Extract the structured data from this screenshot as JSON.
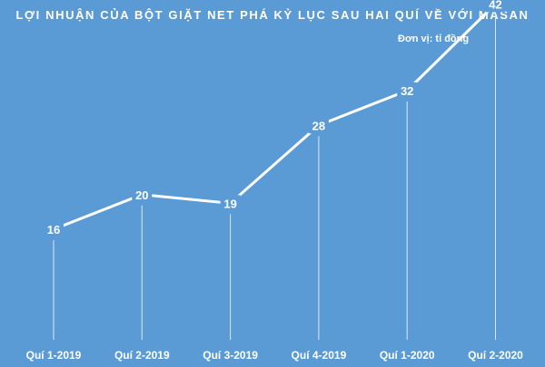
{
  "chart_data": {
    "type": "line",
    "title": "LỢI NHUẬN CỦA BỘT GIẶT NET PHÁ KỶ LỤC SAU HAI QUÍ VỀ VỚI MASAN",
    "unit_label": "Đơn vị: tỉ đồng",
    "categories": [
      "Quí 1-2019",
      "Quí 2-2019",
      "Quí 3-2019",
      "Quí 4-2019",
      "Quí 1-2020",
      "Quí 2-2020"
    ],
    "series": [
      {
        "values": [
          16,
          20,
          19,
          28,
          32,
          42
        ]
      }
    ],
    "data_labels": true,
    "drop_lines": true,
    "legend": "none",
    "grid": false,
    "colors": {
      "background": "#5b9bd5",
      "line": "#ffffff",
      "text": "#ffffff",
      "drop_line": "#dce8f5"
    }
  }
}
